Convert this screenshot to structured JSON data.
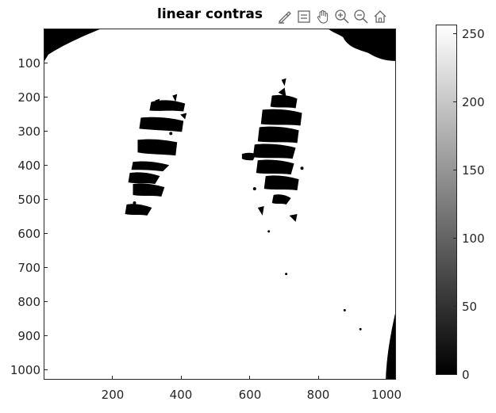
{
  "figure": {
    "title": "linear contras",
    "toolbar": [
      {
        "name": "brush-icon",
        "label": "Brush"
      },
      {
        "name": "data-tips-icon",
        "label": "Data Tips"
      },
      {
        "name": "pan-icon",
        "label": "Pan"
      },
      {
        "name": "zoom-in-icon",
        "label": "Zoom In"
      },
      {
        "name": "zoom-out-icon",
        "label": "Zoom Out"
      },
      {
        "name": "home-icon",
        "label": "Restore View"
      }
    ],
    "colormap": "gray"
  },
  "axes": {
    "y_ticks": [
      "100",
      "200",
      "300",
      "400",
      "500",
      "600",
      "700",
      "800",
      "900",
      "1000"
    ],
    "x_ticks": [
      "200",
      "400",
      "600",
      "800",
      "1000"
    ],
    "xlim": [
      0,
      1024
    ],
    "ylim": [
      0,
      1024
    ],
    "y_reversed": true
  },
  "colorbar": {
    "ticks": [
      "0",
      "50",
      "100",
      "150",
      "200",
      "250"
    ],
    "range": [
      0,
      255
    ]
  }
}
